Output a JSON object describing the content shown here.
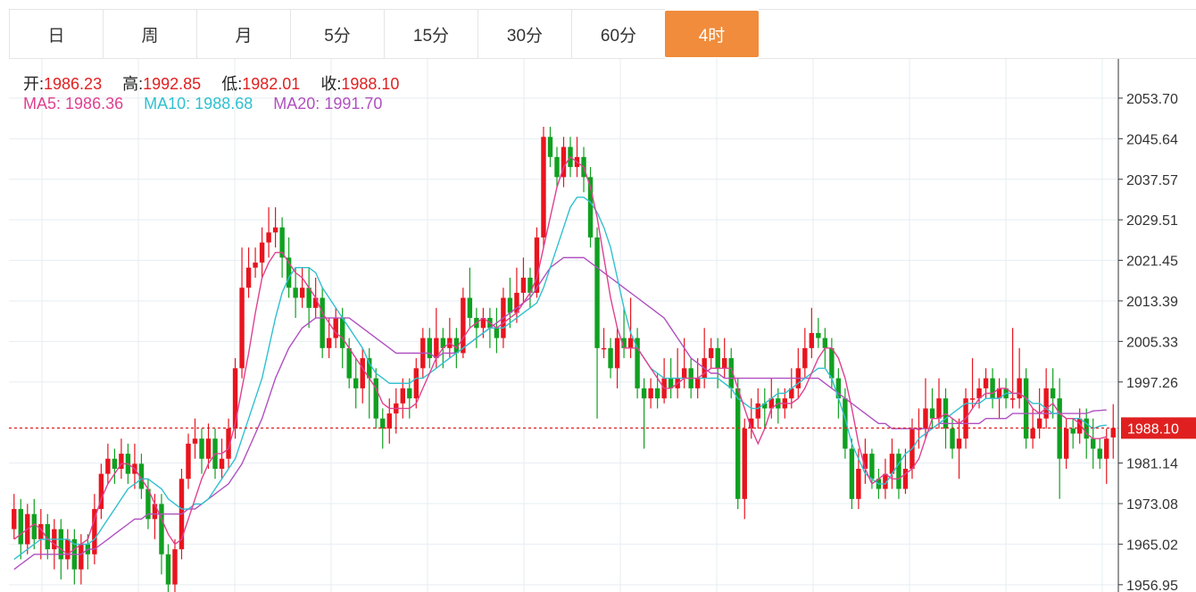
{
  "tabs": [
    {
      "label": "日",
      "active": false
    },
    {
      "label": "周",
      "active": false
    },
    {
      "label": "月",
      "active": false
    },
    {
      "label": "5分",
      "active": false
    },
    {
      "label": "15分",
      "active": false
    },
    {
      "label": "30分",
      "active": false
    },
    {
      "label": "60分",
      "active": false
    },
    {
      "label": "4时",
      "active": true
    }
  ],
  "legend": {
    "open_label": "开:",
    "open": "1986.23",
    "high_label": "高:",
    "high": "1992.85",
    "low_label": "低:",
    "low": "1982.01",
    "close_label": "收:",
    "close": "1988.10",
    "ma5_label": "MA5:",
    "ma5": "1986.36",
    "ma10_label": "MA10:",
    "ma10": "1988.68",
    "ma20_label": "MA20:",
    "ma20": "1991.70"
  },
  "colors": {
    "up": "#e8141e",
    "down": "#10a020",
    "ma5": "#e04090",
    "ma10": "#30c0d0",
    "ma20": "#b050c0",
    "active_tab": "#f08c3c",
    "price_marker": "#e02020"
  },
  "chart_data": {
    "type": "candlestick",
    "yticks": [
      "2053.70",
      "2045.64",
      "2037.57",
      "2029.51",
      "2021.45",
      "2013.39",
      "2005.33",
      "1997.26",
      "1981.14",
      "1973.08",
      "1965.02",
      "1956.95"
    ],
    "ylim": [
      1955.5,
      2061.5
    ],
    "current_price": "1988.10",
    "grid": true,
    "candles": [
      [
        1968,
        1972,
        1975,
        1966
      ],
      [
        1972,
        1965,
        1974,
        1962
      ],
      [
        1965,
        1971,
        1973,
        1963
      ],
      [
        1971,
        1966,
        1974,
        1964
      ],
      [
        1966,
        1969,
        1972,
        1962
      ],
      [
        1969,
        1964,
        1971,
        1962
      ],
      [
        1964,
        1968,
        1970,
        1960
      ],
      [
        1968,
        1962,
        1970,
        1958
      ],
      [
        1962,
        1966,
        1968,
        1960
      ],
      [
        1966,
        1960,
        1968,
        1957
      ],
      [
        1960,
        1965,
        1967,
        1957
      ],
      [
        1965,
        1963,
        1967,
        1960
      ],
      [
        1963,
        1972,
        1975,
        1961
      ],
      [
        1972,
        1979,
        1981,
        1970
      ],
      [
        1979,
        1982,
        1985,
        1977
      ],
      [
        1982,
        1980,
        1984,
        1977
      ],
      [
        1980,
        1983,
        1986,
        1978
      ],
      [
        1983,
        1979,
        1985,
        1977
      ],
      [
        1979,
        1981,
        1985,
        1976
      ],
      [
        1981,
        1976,
        1983,
        1974
      ],
      [
        1976,
        1970,
        1978,
        1968
      ],
      [
        1970,
        1973,
        1975,
        1966
      ],
      [
        1973,
        1963,
        1975,
        1959
      ],
      [
        1963,
        1957,
        1965,
        1952
      ],
      [
        1957,
        1964,
        1966,
        1952
      ],
      [
        1964,
        1978,
        1980,
        1962
      ],
      [
        1978,
        1985,
        1987,
        1976
      ],
      [
        1985,
        1986,
        1990,
        1982
      ],
      [
        1986,
        1982,
        1988,
        1979
      ],
      [
        1982,
        1986,
        1989,
        1980
      ],
      [
        1986,
        1980,
        1988,
        1978
      ],
      [
        1980,
        1982,
        1986,
        1978
      ],
      [
        1982,
        1988,
        1990,
        1980
      ],
      [
        1988,
        2000,
        2002,
        1986
      ],
      [
        2000,
        2016,
        2024,
        1998
      ],
      [
        2016,
        2020,
        2024,
        2014
      ],
      [
        2020,
        2021,
        2024,
        2018
      ],
      [
        2021,
        2025,
        2028,
        2018
      ],
      [
        2025,
        2027,
        2032,
        2022
      ],
      [
        2027,
        2028,
        2032,
        2024
      ],
      [
        2028,
        2022,
        2030,
        2018
      ],
      [
        2022,
        2016,
        2026,
        2014
      ],
      [
        2016,
        2014,
        2020,
        2010
      ],
      [
        2014,
        2016,
        2020,
        2012
      ],
      [
        2016,
        2012,
        2020,
        2008
      ],
      [
        2012,
        2014,
        2018,
        2010
      ],
      [
        2014,
        2004,
        2016,
        2002
      ],
      [
        2004,
        2006,
        2010,
        2002
      ],
      [
        2006,
        2010,
        2012,
        2004
      ],
      [
        2010,
        2004,
        2012,
        2000
      ],
      [
        2004,
        1998,
        2006,
        1996
      ],
      [
        1998,
        1996,
        2002,
        1992
      ],
      [
        1996,
        2002,
        2004,
        1993
      ],
      [
        2002,
        1998,
        2004,
        1990
      ],
      [
        1998,
        1990,
        2000,
        1988
      ],
      [
        1990,
        1988,
        1992,
        1984
      ],
      [
        1988,
        1991,
        1994,
        1985
      ],
      [
        1991,
        1993,
        1996,
        1987
      ],
      [
        1993,
        1996,
        1998,
        1990
      ],
      [
        1996,
        1994,
        1998,
        1990
      ],
      [
        1994,
        2000,
        2002,
        1992
      ],
      [
        2000,
        2006,
        2008,
        1998
      ],
      [
        2006,
        2002,
        2008,
        2000
      ],
      [
        2002,
        2006,
        2012,
        2000
      ],
      [
        2006,
        2004,
        2008,
        2000
      ],
      [
        2004,
        2006,
        2010,
        2002
      ],
      [
        2006,
        2003,
        2008,
        2000
      ],
      [
        2003,
        2014,
        2016,
        2002
      ],
      [
        2014,
        2010,
        2020,
        2008
      ],
      [
        2010,
        2008,
        2012,
        2004
      ],
      [
        2008,
        2010,
        2012,
        2006
      ],
      [
        2010,
        2008,
        2012,
        2004
      ],
      [
        2008,
        2006,
        2012,
        2003
      ],
      [
        2006,
        2014,
        2016,
        2004
      ],
      [
        2014,
        2011,
        2018,
        2008
      ],
      [
        2011,
        2015,
        2020,
        2009
      ],
      [
        2015,
        2018,
        2022,
        2013
      ],
      [
        2018,
        2015,
        2020,
        2012
      ],
      [
        2015,
        2026,
        2028,
        2014
      ],
      [
        2026,
        2046,
        2048,
        2024
      ],
      [
        2046,
        2042,
        2048,
        2040
      ],
      [
        2042,
        2038,
        2044,
        2036
      ],
      [
        2038,
        2044,
        2046,
        2036
      ],
      [
        2044,
        2040,
        2046,
        2038
      ],
      [
        2040,
        2042,
        2046,
        2038
      ],
      [
        2042,
        2038,
        2044,
        2035
      ],
      [
        2038,
        2026,
        2040,
        2024
      ],
      [
        2026,
        2004,
        2028,
        1990
      ],
      [
        2004,
        2004,
        2008,
        2002
      ],
      [
        2004,
        2000,
        2006,
        1998
      ],
      [
        2000,
        2006,
        2008,
        1996
      ],
      [
        2006,
        2004,
        2012,
        2002
      ],
      [
        2004,
        2006,
        2014,
        2002
      ],
      [
        2006,
        1996,
        2008,
        1994
      ],
      [
        1996,
        1994,
        1998,
        1984
      ],
      [
        1994,
        1996,
        1998,
        1992
      ],
      [
        1996,
        1994,
        1999,
        1992
      ],
      [
        1994,
        1998,
        2002,
        1993
      ],
      [
        1998,
        1996,
        2002,
        1994
      ],
      [
        1996,
        1998,
        2004,
        1994
      ],
      [
        1998,
        2000,
        2006,
        1996
      ],
      [
        2000,
        1996,
        2002,
        1994
      ],
      [
        1996,
        1998,
        2002,
        1994
      ],
      [
        1998,
        2002,
        2008,
        1996
      ],
      [
        2002,
        2004,
        2006,
        2000
      ],
      [
        2004,
        2000,
        2006,
        1996
      ],
      [
        2000,
        2002,
        2006,
        1998
      ],
      [
        2002,
        1996,
        2004,
        1994
      ],
      [
        1996,
        1974,
        1998,
        1972
      ],
      [
        1974,
        1988,
        1990,
        1970
      ],
      [
        1988,
        1990,
        1994,
        1986
      ],
      [
        1990,
        1993,
        1996,
        1988
      ],
      [
        1993,
        1992,
        1996,
        1988
      ],
      [
        1992,
        1994,
        1998,
        1990
      ],
      [
        1994,
        1992,
        1996,
        1989
      ],
      [
        1992,
        1994,
        1996,
        1990
      ],
      [
        1994,
        1996,
        2000,
        1992
      ],
      [
        1996,
        2000,
        2004,
        1994
      ],
      [
        2000,
        2004,
        2008,
        1998
      ],
      [
        2004,
        2007,
        2012,
        2002
      ],
      [
        2007,
        2006,
        2010,
        2004
      ],
      [
        2006,
        2004,
        2008,
        2000
      ],
      [
        2004,
        1998,
        2006,
        1996
      ],
      [
        1998,
        1994,
        2000,
        1990
      ],
      [
        1994,
        1984,
        1996,
        1982
      ],
      [
        1984,
        1974,
        1986,
        1972
      ],
      [
        1974,
        1980,
        1984,
        1972
      ],
      [
        1980,
        1983,
        1986,
        1977
      ],
      [
        1983,
        1978,
        1984,
        1976
      ],
      [
        1978,
        1976,
        1980,
        1974
      ],
      [
        1976,
        1979,
        1982,
        1974
      ],
      [
        1979,
        1983,
        1986,
        1976
      ],
      [
        1983,
        1976,
        1984,
        1974
      ],
      [
        1976,
        1980,
        1984,
        1975
      ],
      [
        1980,
        1988,
        1990,
        1978
      ],
      [
        1988,
        1988,
        1992,
        1984
      ],
      [
        1988,
        1992,
        1998,
        1986
      ],
      [
        1992,
        1990,
        1996,
        1988
      ],
      [
        1990,
        1994,
        1998,
        1988
      ],
      [
        1994,
        1988,
        1996,
        1984
      ],
      [
        1988,
        1984,
        1990,
        1982
      ],
      [
        1984,
        1986,
        1990,
        1978
      ],
      [
        1986,
        1994,
        1996,
        1984
      ],
      [
        1994,
        1994,
        2002,
        1992
      ],
      [
        1994,
        1996,
        1998,
        1992
      ],
      [
        1996,
        1998,
        2000,
        1994
      ],
      [
        1998,
        1994,
        2000,
        1992
      ],
      [
        1994,
        1996,
        1998,
        1990
      ],
      [
        1996,
        1994,
        1998,
        1992
      ],
      [
        1994,
        1994,
        2008,
        1992
      ],
      [
        1994,
        1998,
        2004,
        1992
      ],
      [
        1998,
        1986,
        2000,
        1984
      ],
      [
        1986,
        1988,
        1992,
        1984
      ],
      [
        1988,
        1990,
        1996,
        1986
      ],
      [
        1990,
        1996,
        2000,
        1988
      ],
      [
        1996,
        1994,
        2000,
        1990
      ],
      [
        1994,
        1982,
        1998,
        1974
      ],
      [
        1982,
        1988,
        1990,
        1980
      ],
      [
        1988,
        1987,
        1990,
        1984
      ],
      [
        1987,
        1990,
        1992,
        1985
      ],
      [
        1990,
        1986,
        1992,
        1982
      ],
      [
        1986,
        1984,
        1990,
        1980
      ],
      [
        1984,
        1982,
        1986,
        1980
      ],
      [
        1982,
        1986,
        1988,
        1977
      ],
      [
        1986.23,
        1988.1,
        1992.85,
        1982.01
      ]
    ],
    "ma5": [
      1966,
      1967,
      1968,
      1969,
      1968,
      1966,
      1965,
      1964,
      1963,
      1964,
      1965,
      1966,
      1970,
      1974,
      1977,
      1979,
      1981,
      1981,
      1980,
      1978,
      1976,
      1973,
      1970,
      1967,
      1965,
      1966,
      1970,
      1974,
      1978,
      1981,
      1983,
      1983,
      1984,
      1989,
      1996,
      2003,
      2011,
      2018,
      2021,
      2023,
      2023,
      2021,
      2019,
      2018,
      2016,
      2014,
      2011,
      2009,
      2007,
      2006,
      2004,
      2002,
      2000,
      1998,
      1996,
      1993,
      1992,
      1992,
      1992,
      1992,
      1993,
      1996,
      1999,
      2002,
      2004,
      2005,
      2004,
      2006,
      2008,
      2009,
      2010,
      2009,
      2008,
      2009,
      2010,
      2011,
      2013,
      2015,
      2018,
      2024,
      2030,
      2036,
      2040,
      2042,
      2041,
      2040,
      2036,
      2030,
      2022,
      2014,
      2008,
      2004,
      2004,
      2004,
      2002,
      2000,
      1998,
      1996,
      1996,
      1997,
      1998,
      1998,
      1998,
      1999,
      2000,
      2000,
      2000,
      2000,
      1996,
      1992,
      1988,
      1985,
      1988,
      1992,
      1993,
      1993,
      1993,
      1994,
      1996,
      1999,
      2002,
      2004,
      2004,
      2002,
      1998,
      1992,
      1985,
      1980,
      1977,
      1978,
      1979,
      1978,
      1978,
      1979,
      1980,
      1982,
      1986,
      1990,
      1990,
      1991,
      1990,
      1989,
      1990,
      1992,
      1994,
      1995,
      1995,
      1996,
      1996,
      1995,
      1995,
      1994,
      1992,
      1991,
      1992,
      1993,
      1991,
      1990,
      1990,
      1989,
      1987,
      1986,
      1986,
      1986.36
    ],
    "ma10": [
      1962,
      1963,
      1964,
      1965,
      1966,
      1966,
      1966,
      1966,
      1966,
      1965,
      1965,
      1965,
      1966,
      1968,
      1970,
      1972,
      1974,
      1976,
      1977,
      1978,
      1978,
      1977,
      1976,
      1974,
      1973,
      1972,
      1972,
      1973,
      1973,
      1974,
      1976,
      1978,
      1980,
      1982,
      1986,
      1990,
      1994,
      1998,
      2004,
      2010,
      2015,
      2018,
      2020,
      2020,
      2020,
      2019,
      2016,
      2014,
      2012,
      2010,
      2008,
      2006,
      2004,
      2001,
      1999,
      1998,
      1997,
      1997,
      1997,
      1997,
      1998,
      1998,
      1999,
      2000,
      2001,
      2002,
      2003,
      2004,
      2005,
      2006,
      2007,
      2008,
      2008,
      2008,
      2009,
      2010,
      2011,
      2012,
      2013,
      2016,
      2020,
      2024,
      2028,
      2032,
      2034,
      2034,
      2033,
      2031,
      2028,
      2024,
      2018,
      2012,
      2007,
      2004,
      2002,
      2000,
      1999,
      1998,
      1998,
      1998,
      1998,
      1998,
      1998,
      1998,
      1998,
      1998,
      1997,
      1996,
      1994,
      1993,
      1992,
      1992,
      1993,
      1994,
      1995,
      1995,
      1996,
      1997,
      1998,
      1999,
      2000,
      2000,
      1998,
      1994,
      1990,
      1985,
      1982,
      1979,
      1978,
      1977,
      1977,
      1979,
      1981,
      1983,
      1984,
      1986,
      1987,
      1988,
      1989,
      1990,
      1991,
      1992,
      1993,
      1993,
      1993,
      1994,
      1994,
      1994,
      1995,
      1995,
      1995,
      1994,
      1993,
      1993,
      1992,
      1991,
      1991,
      1990,
      1990,
      1990,
      1989,
      1988,
      1988.5,
      1988.68
    ],
    "ma20": [
      1960,
      1961,
      1962,
      1963,
      1963,
      1963,
      1963,
      1963,
      1963,
      1963,
      1963,
      1964,
      1964,
      1965,
      1966,
      1967,
      1968,
      1969,
      1970,
      1970,
      1971,
      1971,
      1971,
      1971,
      1971,
      1971,
      1972,
      1972,
      1973,
      1974,
      1975,
      1976,
      1977,
      1979,
      1981,
      1984,
      1987,
      1990,
      1994,
      1998,
      2001,
      2004,
      2006,
      2008,
      2009,
      2010,
      2010,
      2010,
      2010,
      2010,
      2010,
      2009,
      2008,
      2007,
      2006,
      2005,
      2004,
      2003,
      2003,
      2003,
      2003,
      2003,
      2003,
      2002,
      2003,
      2003,
      2003,
      2004,
      2005,
      2006,
      2007,
      2008,
      2009,
      2010,
      2011,
      2012,
      2013,
      2014,
      2016,
      2018,
      2020,
      2021,
      2022,
      2022,
      2022,
      2022,
      2021,
      2020,
      2019,
      2018,
      2017,
      2016,
      2015,
      2014,
      2013,
      2012,
      2011,
      2010,
      2008,
      2006,
      2004,
      2002,
      2001,
      2000,
      1999,
      1999,
      1998,
      1998,
      1998,
      1998,
      1998,
      1998,
      1998,
      1998,
      1998,
      1998,
      1998,
      1998,
      1998,
      1998,
      1998,
      1997,
      1996,
      1995,
      1994,
      1993,
      1992,
      1991,
      1990,
      1989,
      1989,
      1988,
      1988,
      1988,
      1988,
      1988,
      1988,
      1988,
      1989,
      1989,
      1989,
      1989,
      1989,
      1989,
      1989,
      1990,
      1990,
      1990,
      1990,
      1991,
      1991,
      1991,
      1991,
      1991,
      1991,
      1991,
      1991,
      1991,
      1991,
      1991,
      1991,
      1991.5,
      1991.6,
      1991.7
    ]
  }
}
